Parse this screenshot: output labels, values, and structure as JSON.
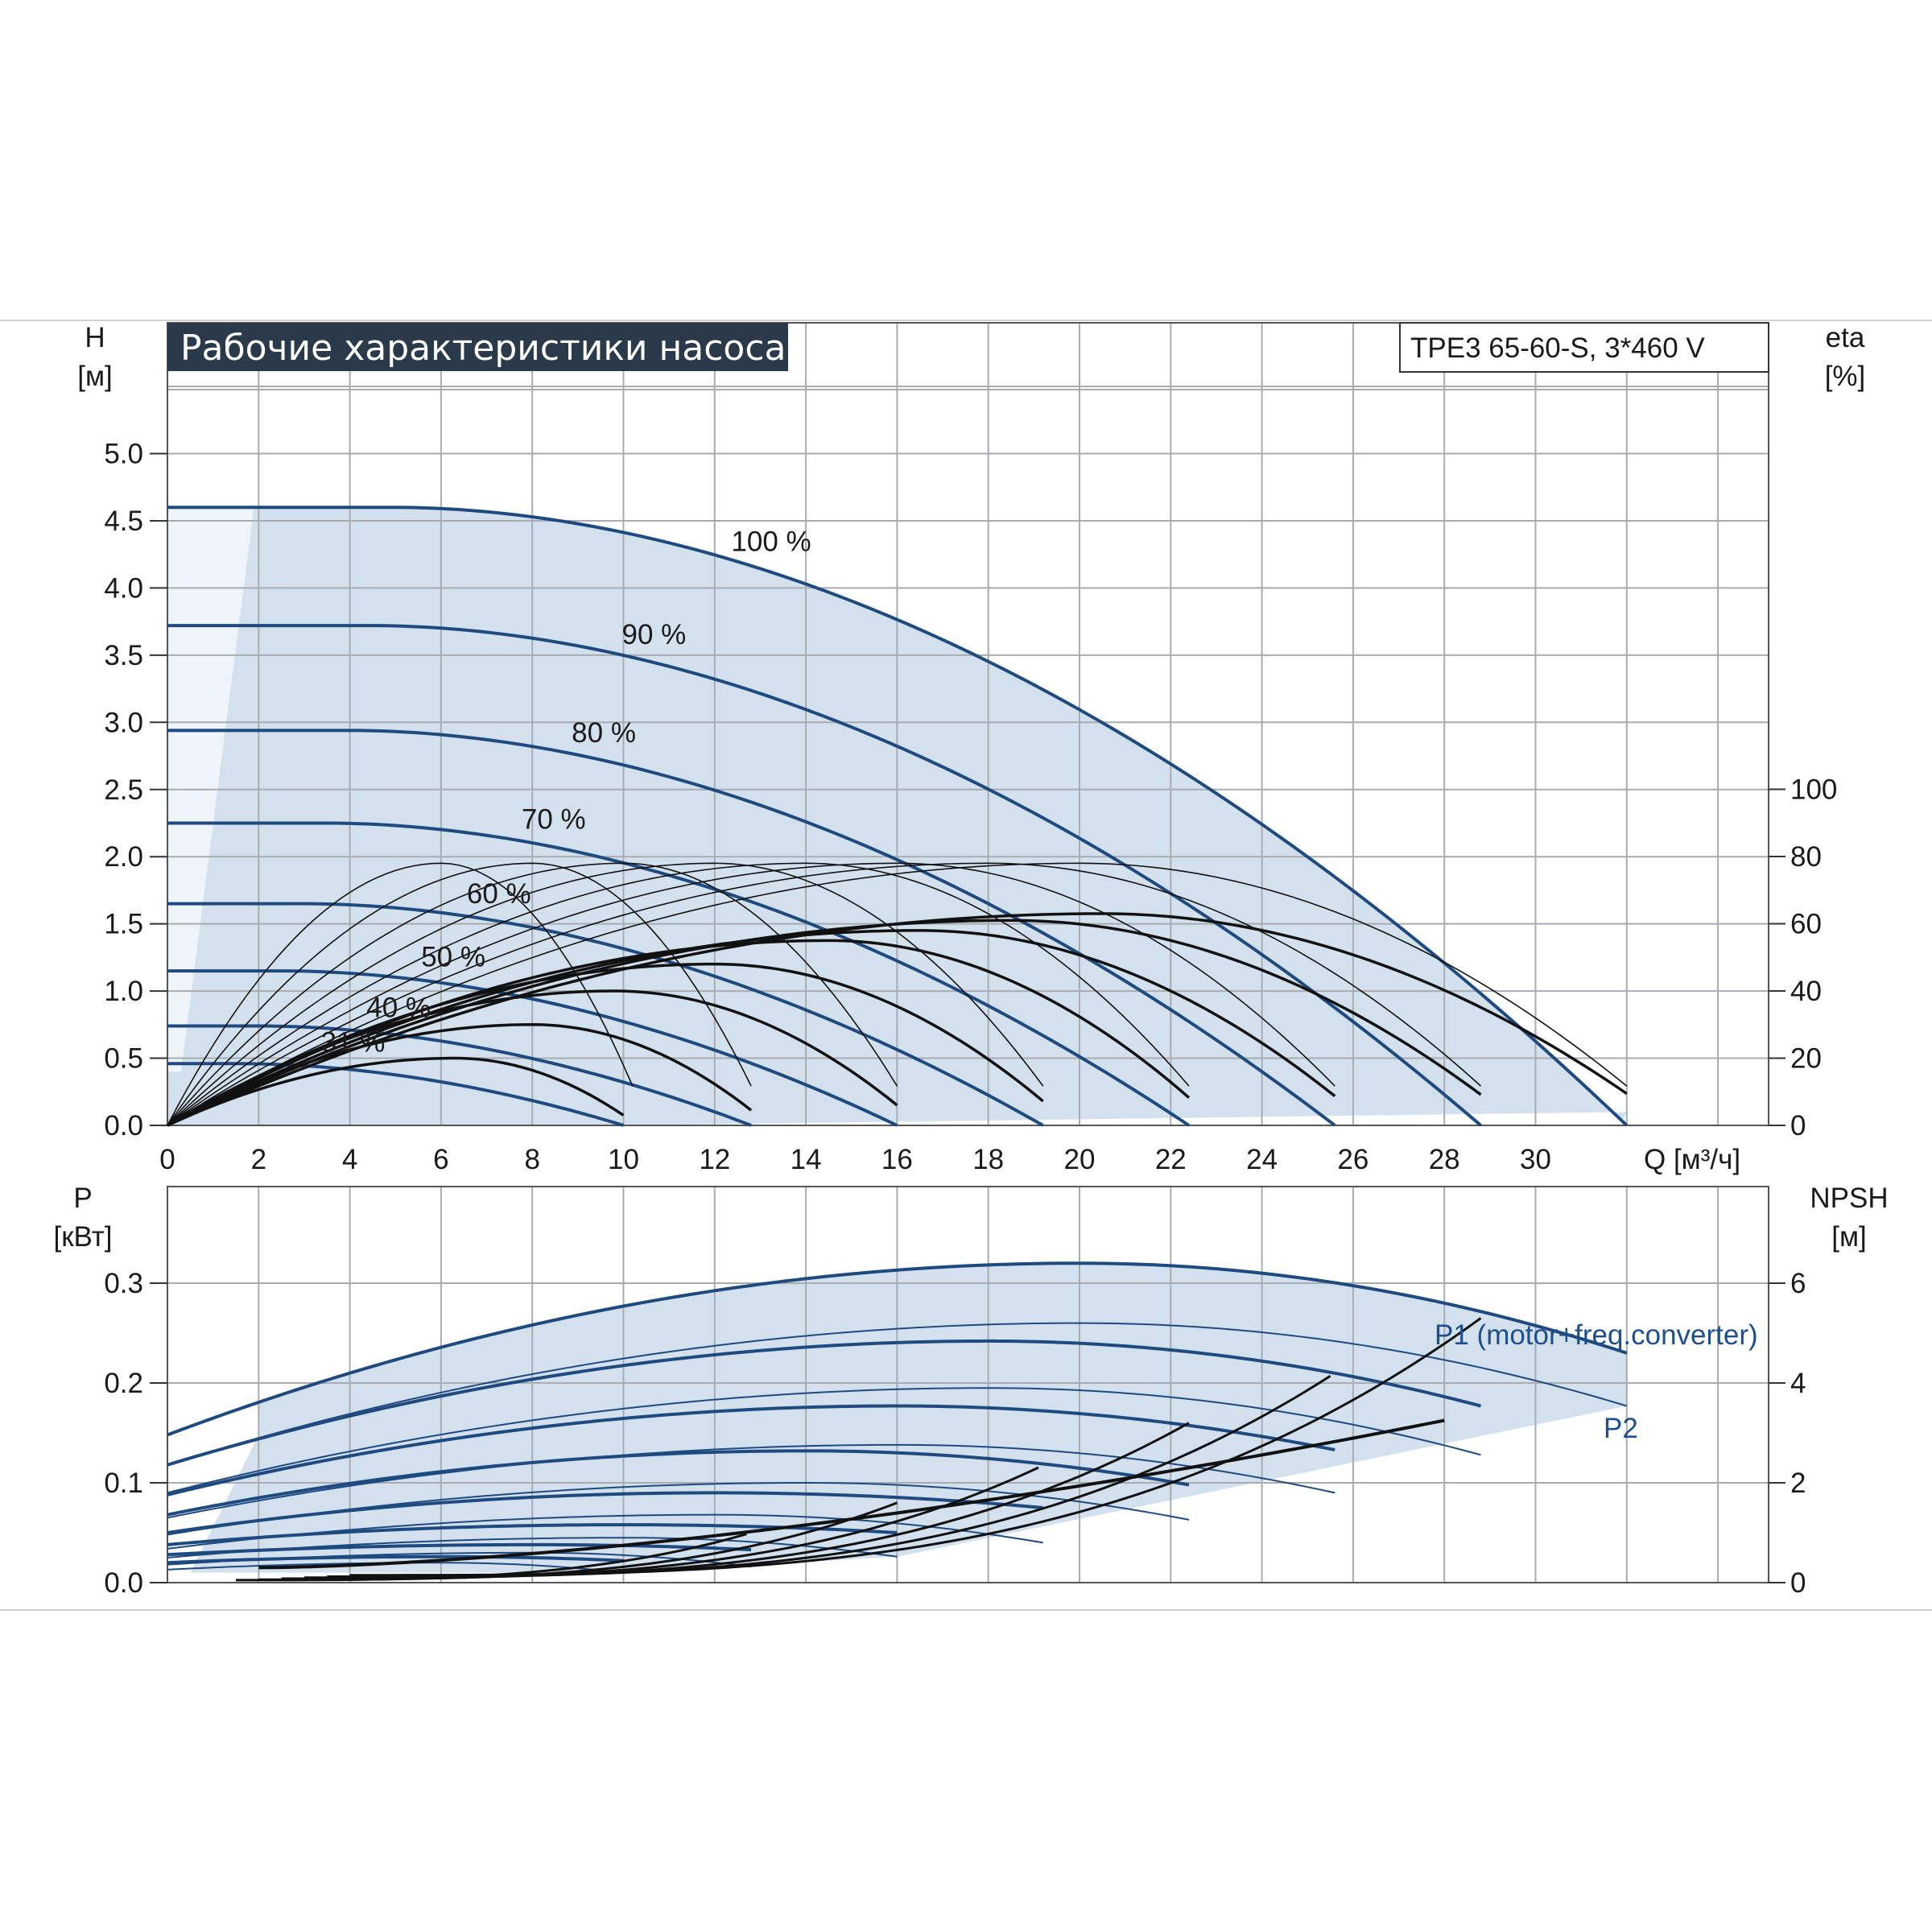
{
  "title": "Рабочие характеристики насоса",
  "model_label": "TPE3 65-60-S, 3*460 V",
  "colors": {
    "curve_blue": "#1f4a80",
    "area_fill": "#d3e1ee",
    "title_bg": "#2b3a4a",
    "grid": "#a8acb0",
    "black_curve": "#111111"
  },
  "chart_data": [
    {
      "type": "line",
      "name": "head-chart",
      "left_axis": {
        "label": "H",
        "unit": "[м]",
        "ticks": [
          0.0,
          0.5,
          1.0,
          1.5,
          2.0,
          2.5,
          3.0,
          3.5,
          4.0,
          4.5,
          5.0
        ],
        "ylim": [
          0,
          5.0
        ]
      },
      "right_axis": {
        "label": "eta",
        "unit": "[%]",
        "ticks": [
          0,
          20,
          40,
          60,
          80,
          100
        ]
      },
      "x_axis": {
        "label": "Q [м³/ч]",
        "ticks": [
          0,
          2,
          4,
          6,
          8,
          10,
          12,
          14,
          16,
          18,
          20,
          22,
          24,
          26,
          28,
          30
        ],
        "xlim": [
          0,
          35
        ]
      },
      "grid": true,
      "speed_curves": [
        {
          "label": "100 %",
          "h0": 4.6,
          "qmax": 32.0,
          "flat": 5.0,
          "k": 2.5
        },
        {
          "label": "90 %",
          "h0": 3.72,
          "qmax": 28.8,
          "flat": 4.5,
          "k": 2.5
        },
        {
          "label": "80 %",
          "h0": 2.94,
          "qmax": 25.6,
          "flat": 4.0,
          "k": 2.5
        },
        {
          "label": "70 %",
          "h0": 2.25,
          "qmax": 22.4,
          "flat": 3.5,
          "k": 2.5
        },
        {
          "label": "60 %",
          "h0": 1.65,
          "qmax": 19.2,
          "flat": 3.0,
          "k": 2.5
        },
        {
          "label": "50 %",
          "h0": 1.15,
          "qmax": 16.0,
          "flat": 2.5,
          "k": 2.5
        },
        {
          "label": "40 %",
          "h0": 0.74,
          "qmax": 12.8,
          "flat": 2.0,
          "k": 2.5
        },
        {
          "label": "31 %",
          "h0": 0.46,
          "qmax": 10.0,
          "flat": 1.55,
          "k": 2.5
        }
      ],
      "efficiency_curves_thick": [
        {
          "peak_q": 20.5,
          "peak_eta": 63,
          "qmax": 32.0
        },
        {
          "peak_q": 18.5,
          "peak_eta": 61,
          "qmax": 28.8
        },
        {
          "peak_q": 16.5,
          "peak_eta": 58,
          "qmax": 25.6
        },
        {
          "peak_q": 14.5,
          "peak_eta": 55,
          "qmax": 22.4
        },
        {
          "peak_q": 12.0,
          "peak_eta": 48,
          "qmax": 19.2
        },
        {
          "peak_q": 9.8,
          "peak_eta": 40,
          "qmax": 16.0
        },
        {
          "peak_q": 8.0,
          "peak_eta": 30,
          "qmax": 12.8
        },
        {
          "peak_q": 6.3,
          "peak_eta": 20,
          "qmax": 10.0
        }
      ],
      "efficiency_curves_thin": [
        {
          "peak_q": 6.0,
          "peak_eta": 78,
          "qmax": 10.2
        },
        {
          "peak_q": 8.0,
          "peak_eta": 78,
          "qmax": 12.8
        },
        {
          "peak_q": 10.0,
          "peak_eta": 78,
          "qmax": 16.0
        },
        {
          "peak_q": 12.0,
          "peak_eta": 78,
          "qmax": 19.2
        },
        {
          "peak_q": 14.0,
          "peak_eta": 78,
          "qmax": 22.4
        },
        {
          "peak_q": 16.0,
          "peak_eta": 78,
          "qmax": 25.6
        },
        {
          "peak_q": 18.0,
          "peak_eta": 78,
          "qmax": 28.8
        },
        {
          "peak_q": 20.0,
          "peak_eta": 78,
          "qmax": 32.0
        }
      ]
    },
    {
      "type": "line",
      "name": "power-chart",
      "left_axis": {
        "label": "P",
        "unit": "[кВт]",
        "ticks": [
          0.0,
          0.1,
          0.2,
          0.3
        ],
        "ylim": [
          0,
          0.4
        ]
      },
      "right_axis": {
        "label": "NPSH",
        "unit": "[м]",
        "ticks": [
          0,
          2,
          4,
          6
        ],
        "ylim": [
          0,
          8
        ]
      },
      "x_axis": {
        "xlim": [
          0,
          35
        ]
      },
      "grid": true,
      "series_labels": {
        "p1": "P1 (motor+freq.converter)",
        "p2": "P2"
      },
      "p1_curves": [
        {
          "qmax": 32.0,
          "p0": 0.148,
          "ppeak": 0.32,
          "qpeak": 20.0,
          "pend": 0.23
        },
        {
          "qmax": 28.8,
          "p0": 0.118,
          "ppeak": 0.242,
          "qpeak": 18.0,
          "pend": 0.177
        },
        {
          "qmax": 25.6,
          "p0": 0.088,
          "ppeak": 0.177,
          "qpeak": 16.0,
          "pend": 0.133
        },
        {
          "qmax": 22.4,
          "p0": 0.068,
          "ppeak": 0.132,
          "qpeak": 14.0,
          "pend": 0.098
        },
        {
          "qmax": 19.2,
          "p0": 0.05,
          "ppeak": 0.09,
          "qpeak": 12.0,
          "pend": 0.075
        },
        {
          "qmax": 16.0,
          "p0": 0.038,
          "ppeak": 0.058,
          "qpeak": 10.0,
          "pend": 0.05
        },
        {
          "qmax": 12.8,
          "p0": 0.028,
          "ppeak": 0.038,
          "qpeak": 8.0,
          "pend": 0.033
        },
        {
          "qmax": 10.0,
          "p0": 0.02,
          "ppeak": 0.026,
          "qpeak": 6.0,
          "pend": 0.022
        }
      ],
      "p2_curves": [
        {
          "qmax": 32.0,
          "p0": 0.118,
          "ppeak": 0.26,
          "qpeak": 20.0,
          "pend": 0.177
        },
        {
          "qmax": 28.8,
          "p0": 0.09,
          "ppeak": 0.195,
          "qpeak": 18.0,
          "pend": 0.128
        },
        {
          "qmax": 25.6,
          "p0": 0.065,
          "ppeak": 0.138,
          "qpeak": 16.0,
          "pend": 0.09
        },
        {
          "qmax": 22.4,
          "p0": 0.048,
          "ppeak": 0.1,
          "qpeak": 14.0,
          "pend": 0.063
        },
        {
          "qmax": 19.2,
          "p0": 0.034,
          "ppeak": 0.068,
          "qpeak": 12.0,
          "pend": 0.04
        },
        {
          "qmax": 16.0,
          "p0": 0.025,
          "ppeak": 0.045,
          "qpeak": 10.0,
          "pend": 0.026
        },
        {
          "qmax": 12.8,
          "p0": 0.018,
          "ppeak": 0.03,
          "qpeak": 8.0,
          "pend": 0.016
        },
        {
          "qmax": 10.0,
          "p0": 0.013,
          "ppeak": 0.02,
          "qpeak": 6.0,
          "pend": 0.01
        }
      ],
      "npsh_curves": [
        {
          "qmax": 28.8,
          "start_q": 4.0,
          "npsh_start": 0.15,
          "npsh_end": 5.3
        },
        {
          "qmax": 25.6,
          "start_q": 3.5,
          "npsh_start": 0.12,
          "npsh_end": 4.2
        },
        {
          "qmax": 22.4,
          "start_q": 3.0,
          "npsh_start": 0.1,
          "npsh_end": 3.2
        },
        {
          "qmax": 19.2,
          "start_q": 2.5,
          "npsh_start": 0.08,
          "npsh_end": 2.35
        },
        {
          "qmax": 16.0,
          "start_q": 2.0,
          "npsh_start": 0.06,
          "npsh_end": 1.6
        },
        {
          "qmax": 12.8,
          "start_q": 1.5,
          "npsh_start": 0.05,
          "npsh_end": 1.0
        }
      ],
      "npsh_envelope": {
        "q_start": 2.0,
        "q_end": 28.0,
        "npsh_start": 0.3,
        "npsh_end": 3.25
      }
    }
  ]
}
